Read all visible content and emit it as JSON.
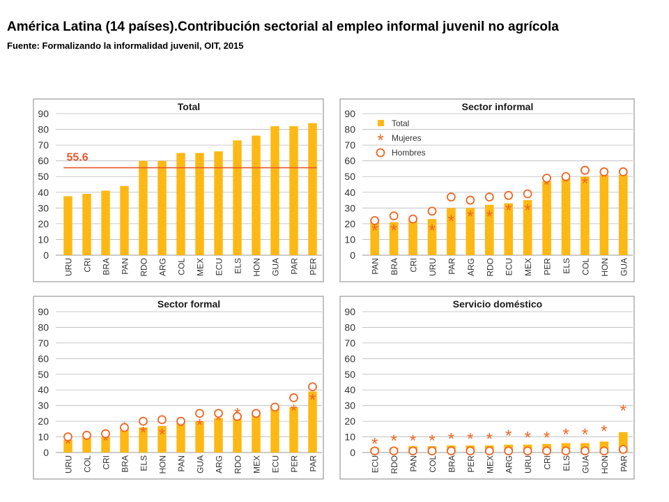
{
  "header": {
    "title": "América Latina (14 países).Contribución sectorial al empleo informal juvenil no agrícola",
    "subtitle": "Fuente: Formalizando la informalidad juvenil, OIT, 2015"
  },
  "colors": {
    "bar": "#FDB813",
    "marker": "#F26522",
    "reference_line": "#E8562A",
    "grid": "#b8b8b8",
    "panel_border": "#9a9a9a"
  },
  "legend": {
    "total": "Total",
    "mujeres": "Mujeres",
    "hombres": "Hombres",
    "marker_mujeres": "*"
  },
  "chart_data": [
    {
      "type": "bar",
      "title": "Total",
      "ylim": [
        0,
        90
      ],
      "yticks": [
        0,
        10,
        20,
        30,
        40,
        50,
        60,
        70,
        80,
        90
      ],
      "grid": true,
      "categories": [
        "URU",
        "CRI",
        "BRA",
        "PAN",
        "RDO",
        "ARG",
        "COL",
        "MEX",
        "ECU",
        "ELS",
        "HON",
        "GUA",
        "PAR",
        "PER"
      ],
      "series": [
        {
          "values": [
            37.5,
            39,
            41,
            44,
            60,
            60,
            65,
            65,
            66,
            73,
            76,
            82,
            82,
            84
          ]
        }
      ],
      "reference_line": {
        "value": 55.6,
        "label": "55.6"
      }
    },
    {
      "type": "bar",
      "title": "Sector informal",
      "ylim": [
        0,
        90
      ],
      "yticks": [
        0,
        10,
        20,
        30,
        40,
        50,
        60,
        70,
        80,
        90
      ],
      "grid": true,
      "legend_position": "top-left",
      "categories": [
        "PAN",
        "BRA",
        "CRI",
        "URU",
        "PAR",
        "ARG",
        "RDO",
        "ECU",
        "MEX",
        "PER",
        "ELS",
        "COL",
        "HON",
        "GUA"
      ],
      "series": [
        {
          "name": "Total",
          "type": "bar",
          "values": [
            21,
            21,
            22,
            23,
            30,
            30,
            32,
            33,
            35,
            47,
            49,
            50,
            51,
            51
          ]
        },
        {
          "name": "Mujeres",
          "type": "scatter",
          "values": [
            17,
            17,
            22,
            17,
            23,
            26,
            26,
            30,
            30,
            46,
            48,
            47,
            51,
            52
          ]
        },
        {
          "name": "Hombres",
          "type": "scatter",
          "values": [
            22,
            25,
            23,
            28,
            37,
            35,
            37,
            38,
            39,
            49,
            50,
            54,
            53,
            53
          ]
        }
      ]
    },
    {
      "type": "bar",
      "title": "Sector formal",
      "ylim": [
        0,
        90
      ],
      "yticks": [
        0,
        10,
        20,
        30,
        40,
        50,
        60,
        70,
        80,
        90
      ],
      "grid": true,
      "categories": [
        "URU",
        "COL",
        "CRI",
        "BRA",
        "ELS",
        "HON",
        "PAN",
        "GUA",
        "ARG",
        "RDO",
        "MEX",
        "ECU",
        "PER",
        "PAR"
      ],
      "series": [
        {
          "name": "Total",
          "type": "bar",
          "values": [
            8,
            10,
            10,
            16,
            16,
            17,
            19,
            20,
            22,
            24,
            25,
            29,
            29,
            39
          ]
        },
        {
          "name": "Mujeres",
          "type": "scatter",
          "values": [
            7,
            10,
            9,
            17,
            14,
            13,
            18,
            19,
            22,
            26,
            25,
            28,
            28,
            35
          ]
        },
        {
          "name": "Hombres",
          "type": "scatter",
          "values": [
            10,
            11,
            12,
            16,
            20,
            21,
            20,
            25,
            25,
            23,
            25,
            29,
            35,
            42
          ]
        }
      ]
    },
    {
      "type": "bar",
      "title": "Servicio doméstico",
      "ylim": [
        0,
        90
      ],
      "yticks": [
        0,
        10,
        20,
        30,
        40,
        50,
        60,
        70,
        80,
        90
      ],
      "grid": true,
      "categories": [
        "ECU",
        "RDO",
        "PAN",
        "COL",
        "BRA",
        "PER",
        "MEX",
        "ARG",
        "URU",
        "CRI",
        "ELS",
        "GUA",
        "HON",
        "PAR"
      ],
      "series": [
        {
          "name": "Total",
          "type": "bar",
          "values": [
            3,
            3,
            4,
            4,
            4.5,
            4.5,
            4.5,
            5,
            5,
            5.5,
            6,
            6,
            7,
            13
          ]
        },
        {
          "name": "Mujeres",
          "type": "scatter",
          "values": [
            7,
            9,
            9,
            9,
            10,
            10,
            10,
            12,
            11,
            11,
            13,
            13,
            15,
            28
          ]
        },
        {
          "name": "Hombres",
          "type": "scatter",
          "values": [
            1,
            1,
            1,
            1,
            1,
            1,
            1,
            1,
            1,
            1,
            1,
            1,
            1,
            2
          ]
        }
      ]
    }
  ]
}
